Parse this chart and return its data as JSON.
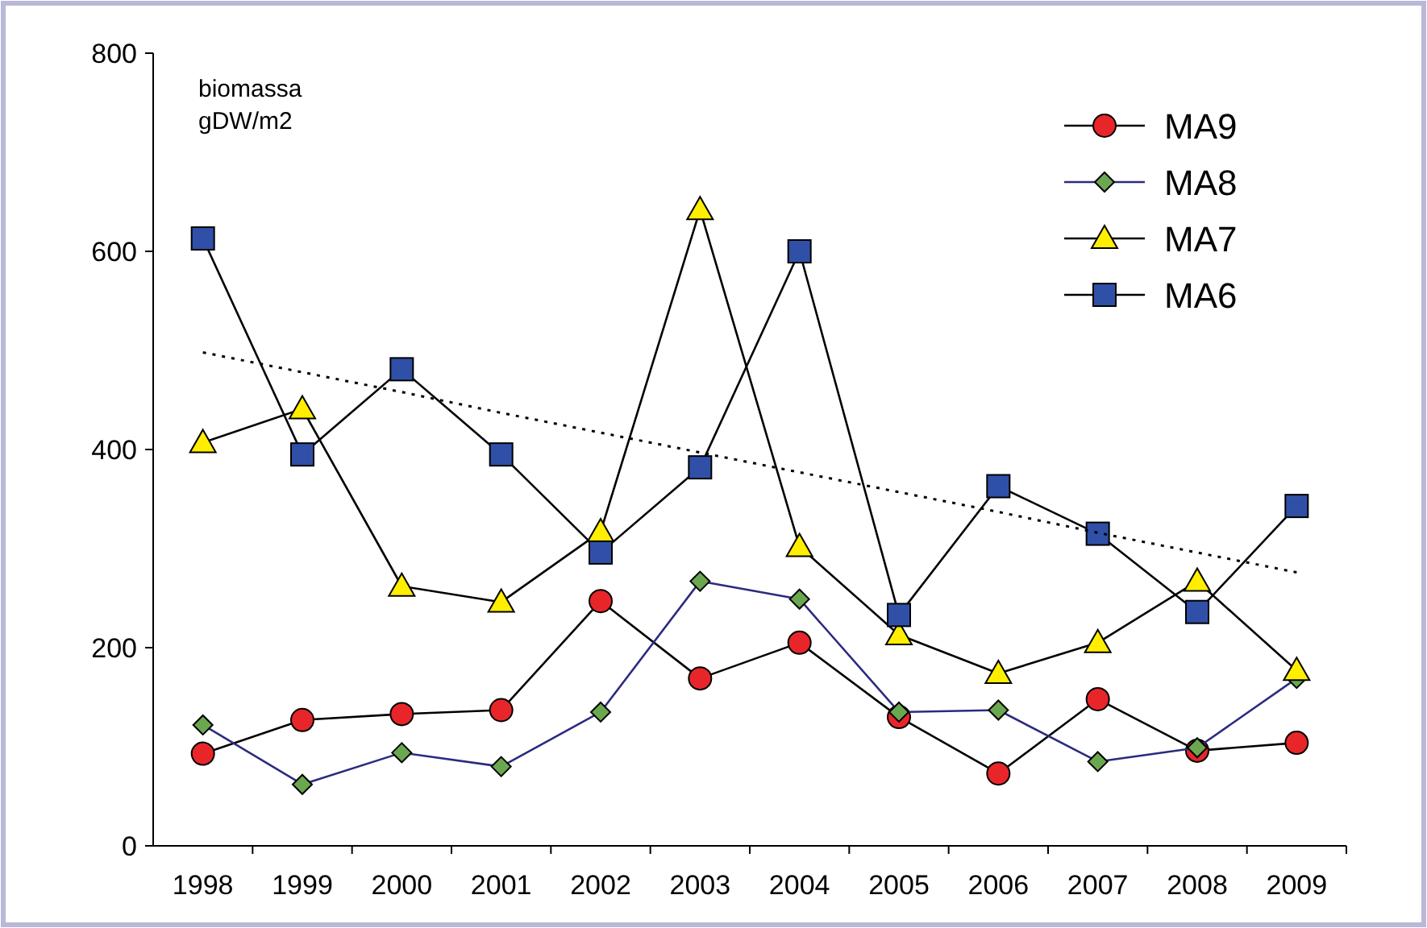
{
  "chart_data": {
    "type": "line",
    "ylabel": "biomassa gDW/m2",
    "categories": [
      "1998",
      "1999",
      "2000",
      "2001",
      "2002",
      "2003",
      "2004",
      "2005",
      "2006",
      "2007",
      "2008",
      "2009"
    ],
    "ylim": [
      0,
      800
    ],
    "yticks": [
      0,
      200,
      400,
      600,
      800
    ],
    "grid": false,
    "legend": "top right",
    "series": [
      {
        "name": "MA9",
        "color": "#e8262a",
        "marker": "circle",
        "values": [
          93,
          127,
          133,
          137,
          247,
          169,
          205,
          130,
          73,
          148,
          96,
          104
        ]
      },
      {
        "name": "MA8",
        "color": "#6aa84f",
        "marker": "diamond",
        "values": [
          122,
          62,
          94,
          80,
          135,
          267,
          249,
          135,
          137,
          85,
          99,
          169
        ]
      },
      {
        "name": "MA7",
        "color": "#ffee00",
        "marker": "triangle",
        "values": [
          407,
          441,
          262,
          246,
          317,
          642,
          302,
          213,
          174,
          205,
          267,
          177
        ]
      },
      {
        "name": "MA6",
        "color": "#3050a8",
        "marker": "square",
        "values": [
          613,
          395,
          481,
          395,
          296,
          382,
          600,
          233,
          363,
          315,
          236,
          343
        ]
      },
      {
        "color": "#000000",
        "marker": "none",
        "line_style": "dotted",
        "values": [
          498,
          478,
          458,
          437,
          417,
          397,
          377,
          357,
          337,
          316,
          296,
          276
        ]
      }
    ]
  }
}
